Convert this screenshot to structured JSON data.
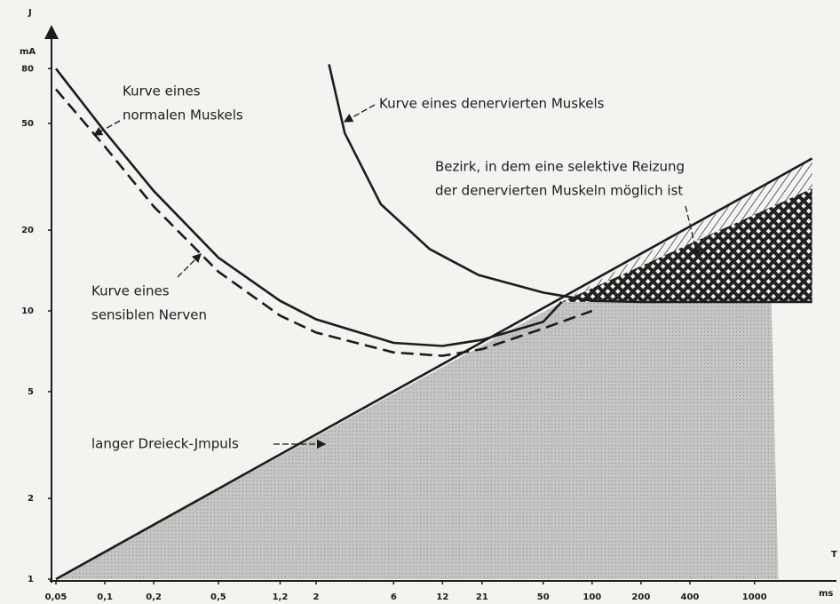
{
  "chart_data": {
    "type": "line",
    "x_axis_label": "T",
    "x_unit": "ms",
    "y_axis_label": "J",
    "y_unit": "mA",
    "log_x": true,
    "log_y": true,
    "xlim": [
      0.05,
      3000
    ],
    "ylim": [
      1,
      100
    ],
    "xticks": [
      {
        "value": 0.05,
        "label": "0,05"
      },
      {
        "value": 0.1,
        "label": "0,1"
      },
      {
        "value": 0.2,
        "label": "0,2"
      },
      {
        "value": 0.5,
        "label": "0,5"
      },
      {
        "value": 1.2,
        "label": "1,2"
      },
      2,
      6,
      12,
      21,
      50,
      100,
      200,
      400,
      1000
    ],
    "yticks": [
      1,
      2,
      5,
      10,
      20,
      50,
      80
    ],
    "series": [
      {
        "name": "Kurve eines normalen Muskels",
        "color": "#1c1c1c",
        "dash": false,
        "x": [
          0.05,
          0.1,
          0.2,
          0.5,
          1.2,
          2,
          6,
          12,
          21,
          50,
          65
        ],
        "values": [
          80,
          46.6,
          28,
          15.8,
          10.9,
          9.3,
          7.6,
          7.4,
          7.8,
          9.1,
          10.8
        ]
      },
      {
        "name": "Kurve eines sensiblen Nerven",
        "color": "#1c1c1c",
        "dash": true,
        "x": [
          0.05,
          0.1,
          0.2,
          0.5,
          1.2,
          2,
          6,
          12,
          21,
          50,
          100
        ],
        "values": [
          67,
          41,
          24.5,
          14,
          9.6,
          8.3,
          7,
          6.8,
          7.2,
          8.6,
          10
        ]
      },
      {
        "name": "Kurve eines denervierten Muskels",
        "color": "#1c1c1c",
        "dash": false,
        "x": [
          2.4,
          3,
          5,
          10,
          20,
          50,
          100,
          200,
          1000,
          2264
        ],
        "values": [
          83,
          46,
          25,
          17,
          13.6,
          11.7,
          10.9,
          10.8,
          10.8,
          10.8
        ]
      },
      {
        "name": "langer Dreieck-Jmpuls",
        "color": "#1c1c1c",
        "dash": false,
        "x": [
          0.05,
          2264
        ],
        "values": [
          1,
          37
        ]
      }
    ],
    "regions": [
      {
        "pattern": "dots",
        "x": [
          0.05,
          65,
          1270,
          1400
        ],
        "values": [
          1,
          10.8,
          10.8,
          1
        ]
      },
      {
        "pattern": "hatch",
        "x": [
          65,
          2264,
          2264
        ],
        "values": [
          10.8,
          37,
          28.6
        ]
      },
      {
        "pattern": "cross",
        "x": [
          65,
          2264,
          2264
        ],
        "values": [
          10.8,
          28.6,
          10.8
        ]
      }
    ],
    "annotations": [
      {
        "lines": [
          "Kurve eines",
          "normalen Muskels"
        ]
      },
      {
        "lines": [
          "Kurve eines denervierten Muskels"
        ]
      },
      {
        "lines": [
          "Bezirk, in dem eine selektive Reizung",
          "der denervierten Muskeln möglich ist"
        ]
      },
      {
        "lines": [
          "Kurve eines",
          "sensiblen Nerven"
        ]
      },
      {
        "lines": [
          "langer Dreieck-Jmpuls"
        ]
      }
    ]
  }
}
